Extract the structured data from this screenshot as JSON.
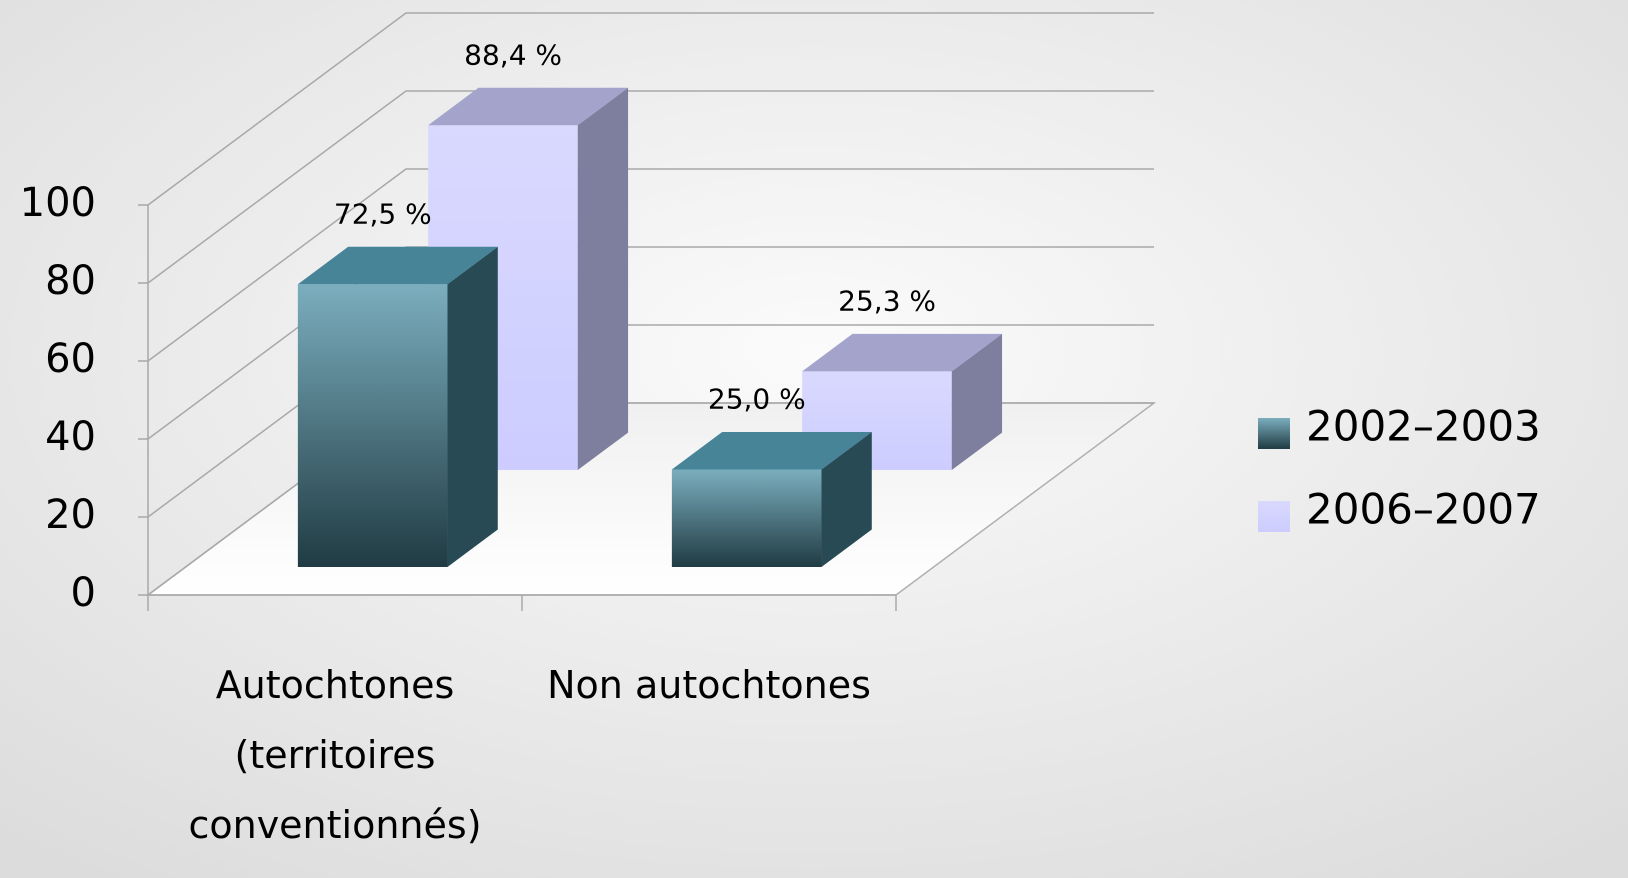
{
  "chart_data": {
    "type": "bar3d",
    "categories": [
      "Autochtones (territoires conventionnés)",
      "Non autochtones"
    ],
    "series": [
      {
        "name": "2002–2003",
        "color": "#4f93a8",
        "values": [
          72.5,
          25.0
        ],
        "value_labels": [
          "72,5 %",
          "25,0 %"
        ]
      },
      {
        "name": "2006–2007",
        "color": "#ccccff",
        "values": [
          88.4,
          25.3
        ],
        "value_labels": [
          "88,4 %",
          "25,3 %"
        ]
      }
    ],
    "ylim": [
      0,
      100
    ],
    "yticks": [
      0,
      20,
      40,
      60,
      80,
      100
    ],
    "grid": true,
    "legend": "right"
  }
}
